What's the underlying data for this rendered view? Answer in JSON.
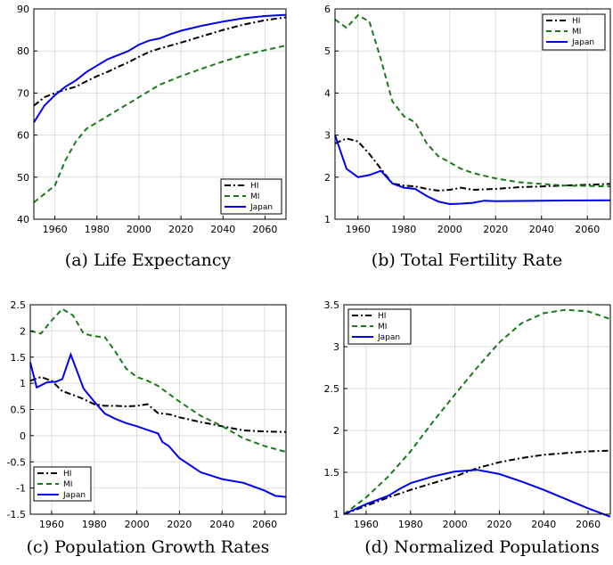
{
  "chart_data": [
    {
      "type": "line",
      "caption": "(a) Life Expectancy",
      "xlim": [
        1950,
        2070
      ],
      "ylim": [
        40,
        90
      ],
      "xticks": [
        1960,
        1980,
        2000,
        2020,
        2040,
        2060
      ],
      "yticks": [
        40,
        50,
        60,
        70,
        80,
        90
      ],
      "legend_position": "bottom-right",
      "series": [
        {
          "name": "HI",
          "color": "#000000",
          "style": "dashdot",
          "points": [
            [
              1950,
              67
            ],
            [
              1955,
              69
            ],
            [
              1960,
              70
            ],
            [
              1965,
              70.8
            ],
            [
              1970,
              71.5
            ],
            [
              1975,
              72.8
            ],
            [
              1980,
              74
            ],
            [
              1985,
              75
            ],
            [
              1990,
              76.2
            ],
            [
              1995,
              77.3
            ],
            [
              2000,
              78.6
            ],
            [
              2005,
              79.8
            ],
            [
              2010,
              80.6
            ],
            [
              2020,
              82
            ],
            [
              2030,
              83.5
            ],
            [
              2040,
              85
            ],
            [
              2050,
              86.3
            ],
            [
              2060,
              87.3
            ],
            [
              2070,
              88
            ]
          ]
        },
        {
          "name": "MI",
          "color": "#1a7a1a",
          "style": "dashed",
          "points": [
            [
              1950,
              44
            ],
            [
              1955,
              46
            ],
            [
              1960,
              48
            ],
            [
              1965,
              54
            ],
            [
              1970,
              58.5
            ],
            [
              1975,
              61.5
            ],
            [
              1980,
              63
            ],
            [
              1985,
              64.5
            ],
            [
              1990,
              66
            ],
            [
              1995,
              67.5
            ],
            [
              2000,
              69
            ],
            [
              2005,
              70.5
            ],
            [
              2010,
              72
            ],
            [
              2020,
              74
            ],
            [
              2030,
              75.8
            ],
            [
              2040,
              77.5
            ],
            [
              2050,
              79
            ],
            [
              2060,
              80.2
            ],
            [
              2070,
              81.3
            ]
          ]
        },
        {
          "name": "Japan",
          "color": "#0000ee",
          "style": "solid",
          "points": [
            [
              1950,
              63
            ],
            [
              1955,
              67
            ],
            [
              1960,
              69.5
            ],
            [
              1965,
              71.5
            ],
            [
              1970,
              73
            ],
            [
              1975,
              75
            ],
            [
              1980,
              76.5
            ],
            [
              1985,
              78
            ],
            [
              1990,
              79
            ],
            [
              1995,
              80
            ],
            [
              2000,
              81.5
            ],
            [
              2005,
              82.5
            ],
            [
              2010,
              83
            ],
            [
              2015,
              84
            ],
            [
              2020,
              84.8
            ],
            [
              2030,
              86
            ],
            [
              2040,
              87
            ],
            [
              2050,
              87.8
            ],
            [
              2060,
              88.3
            ],
            [
              2070,
              88.6
            ]
          ]
        }
      ]
    },
    {
      "type": "line",
      "caption": "(b) Total Fertility Rate",
      "xlim": [
        1950,
        2070
      ],
      "ylim": [
        1,
        6
      ],
      "xticks": [
        1960,
        1980,
        2000,
        2020,
        2040,
        2060
      ],
      "yticks": [
        1,
        2,
        3,
        4,
        5,
        6
      ],
      "legend_position": "top-right",
      "series": [
        {
          "name": "HI",
          "color": "#000000",
          "style": "dashdot",
          "points": [
            [
              1950,
              2.8
            ],
            [
              1955,
              2.92
            ],
            [
              1960,
              2.85
            ],
            [
              1965,
              2.55
            ],
            [
              1970,
              2.2
            ],
            [
              1975,
              1.85
            ],
            [
              1980,
              1.8
            ],
            [
              1985,
              1.78
            ],
            [
              1990,
              1.72
            ],
            [
              1995,
              1.68
            ],
            [
              2000,
              1.7
            ],
            [
              2005,
              1.75
            ],
            [
              2010,
              1.7
            ],
            [
              2020,
              1.72
            ],
            [
              2030,
              1.76
            ],
            [
              2040,
              1.78
            ],
            [
              2050,
              1.8
            ],
            [
              2060,
              1.82
            ],
            [
              2070,
              1.84
            ]
          ]
        },
        {
          "name": "MI",
          "color": "#1a7a1a",
          "style": "dashed",
          "points": [
            [
              1950,
              5.75
            ],
            [
              1955,
              5.55
            ],
            [
              1960,
              5.85
            ],
            [
              1965,
              5.7
            ],
            [
              1970,
              4.8
            ],
            [
              1975,
              3.8
            ],
            [
              1980,
              3.45
            ],
            [
              1985,
              3.3
            ],
            [
              1990,
              2.8
            ],
            [
              1995,
              2.5
            ],
            [
              2000,
              2.35
            ],
            [
              2005,
              2.2
            ],
            [
              2010,
              2.1
            ],
            [
              2020,
              1.97
            ],
            [
              2030,
              1.88
            ],
            [
              2040,
              1.84
            ],
            [
              2050,
              1.8
            ],
            [
              2060,
              1.79
            ],
            [
              2070,
              1.78
            ]
          ]
        },
        {
          "name": "Japan",
          "color": "#0000ee",
          "style": "solid",
          "points": [
            [
              1950,
              3.0
            ],
            [
              1955,
              2.2
            ],
            [
              1960,
              2.0
            ],
            [
              1965,
              2.05
            ],
            [
              1970,
              2.15
            ],
            [
              1975,
              1.85
            ],
            [
              1980,
              1.75
            ],
            [
              1985,
              1.72
            ],
            [
              1990,
              1.55
            ],
            [
              1995,
              1.42
            ],
            [
              2000,
              1.36
            ],
            [
              2005,
              1.37
            ],
            [
              2010,
              1.39
            ],
            [
              2015,
              1.44
            ],
            [
              2020,
              1.43
            ],
            [
              2040,
              1.44
            ],
            [
              2070,
              1.45
            ]
          ]
        }
      ]
    },
    {
      "type": "line",
      "caption": "(c) Population Growth Rates",
      "xlim": [
        1950,
        2070
      ],
      "ylim": [
        -1.5,
        2.5
      ],
      "xticks": [
        1960,
        1980,
        2000,
        2020,
        2040,
        2060
      ],
      "yticks": [
        -1.5,
        -1,
        -0.5,
        0,
        0.5,
        1,
        1.5,
        2,
        2.5
      ],
      "legend_position": "bottom-left",
      "series": [
        {
          "name": "HI",
          "color": "#000000",
          "style": "dashdot",
          "points": [
            [
              1950,
              1.05
            ],
            [
              1955,
              1.12
            ],
            [
              1960,
              1.05
            ],
            [
              1965,
              0.85
            ],
            [
              1970,
              0.78
            ],
            [
              1975,
              0.7
            ],
            [
              1980,
              0.6
            ],
            [
              1985,
              0.57
            ],
            [
              1990,
              0.57
            ],
            [
              1995,
              0.56
            ],
            [
              2000,
              0.57
            ],
            [
              2005,
              0.6
            ],
            [
              2010,
              0.43
            ],
            [
              2015,
              0.41
            ],
            [
              2020,
              0.35
            ],
            [
              2030,
              0.26
            ],
            [
              2040,
              0.18
            ],
            [
              2050,
              0.1
            ],
            [
              2060,
              0.08
            ],
            [
              2070,
              0.07
            ]
          ]
        },
        {
          "name": "MI",
          "color": "#1a7a1a",
          "style": "dashed",
          "points": [
            [
              1950,
              2.0
            ],
            [
              1955,
              1.95
            ],
            [
              1960,
              2.2
            ],
            [
              1965,
              2.42
            ],
            [
              1970,
              2.3
            ],
            [
              1975,
              1.95
            ],
            [
              1980,
              1.9
            ],
            [
              1985,
              1.88
            ],
            [
              1990,
              1.6
            ],
            [
              1995,
              1.28
            ],
            [
              2000,
              1.12
            ],
            [
              2005,
              1.05
            ],
            [
              2010,
              0.95
            ],
            [
              2020,
              0.65
            ],
            [
              2030,
              0.38
            ],
            [
              2040,
              0.18
            ],
            [
              2050,
              -0.05
            ],
            [
              2060,
              -0.2
            ],
            [
              2070,
              -0.31
            ]
          ]
        },
        {
          "name": "Japan",
          "color": "#0000ee",
          "style": "solid",
          "points": [
            [
              1950,
              1.4
            ],
            [
              1953,
              0.92
            ],
            [
              1958,
              1.02
            ],
            [
              1962,
              1.03
            ],
            [
              1965,
              1.08
            ],
            [
              1969,
              1.55
            ],
            [
              1975,
              0.9
            ],
            [
              1980,
              0.65
            ],
            [
              1985,
              0.42
            ],
            [
              1990,
              0.32
            ],
            [
              1995,
              0.24
            ],
            [
              2000,
              0.18
            ],
            [
              2005,
              0.11
            ],
            [
              2010,
              0.04
            ],
            [
              2012,
              -0.12
            ],
            [
              2015,
              -0.2
            ],
            [
              2020,
              -0.43
            ],
            [
              2030,
              -0.7
            ],
            [
              2040,
              -0.83
            ],
            [
              2050,
              -0.9
            ],
            [
              2060,
              -1.05
            ],
            [
              2065,
              -1.15
            ],
            [
              2070,
              -1.17
            ]
          ]
        }
      ]
    },
    {
      "type": "line",
      "caption": "(d) Normalized Populations",
      "xlim": [
        1950,
        2070
      ],
      "ylim": [
        1,
        3.5
      ],
      "xticks": [
        1960,
        1980,
        2000,
        2020,
        2040,
        2060
      ],
      "yticks": [
        1,
        1.5,
        2,
        2.5,
        3,
        3.5
      ],
      "legend_position": "top-left",
      "series": [
        {
          "name": "HI",
          "color": "#000000",
          "style": "dashdot",
          "points": [
            [
              1950,
              1.0
            ],
            [
              1960,
              1.1
            ],
            [
              1970,
              1.2
            ],
            [
              1980,
              1.29
            ],
            [
              1990,
              1.37
            ],
            [
              2000,
              1.45
            ],
            [
              2010,
              1.55
            ],
            [
              2020,
              1.62
            ],
            [
              2030,
              1.67
            ],
            [
              2040,
              1.71
            ],
            [
              2050,
              1.73
            ],
            [
              2060,
              1.75
            ],
            [
              2070,
              1.76
            ]
          ]
        },
        {
          "name": "MI",
          "color": "#1a7a1a",
          "style": "dashed",
          "points": [
            [
              1950,
              1.0
            ],
            [
              1960,
              1.2
            ],
            [
              1970,
              1.45
            ],
            [
              1980,
              1.75
            ],
            [
              1990,
              2.1
            ],
            [
              2000,
              2.43
            ],
            [
              2010,
              2.75
            ],
            [
              2020,
              3.05
            ],
            [
              2030,
              3.28
            ],
            [
              2040,
              3.4
            ],
            [
              2050,
              3.44
            ],
            [
              2060,
              3.42
            ],
            [
              2070,
              3.33
            ]
          ]
        },
        {
          "name": "Japan",
          "color": "#0000ee",
          "style": "solid",
          "points": [
            [
              1950,
              1.0
            ],
            [
              1960,
              1.12
            ],
            [
              1970,
              1.22
            ],
            [
              1975,
              1.3
            ],
            [
              1980,
              1.37
            ],
            [
              1990,
              1.45
            ],
            [
              2000,
              1.51
            ],
            [
              2010,
              1.53
            ],
            [
              2020,
              1.48
            ],
            [
              2030,
              1.39
            ],
            [
              2040,
              1.29
            ],
            [
              2050,
              1.18
            ],
            [
              2060,
              1.07
            ],
            [
              2070,
              0.97
            ]
          ]
        }
      ]
    }
  ]
}
